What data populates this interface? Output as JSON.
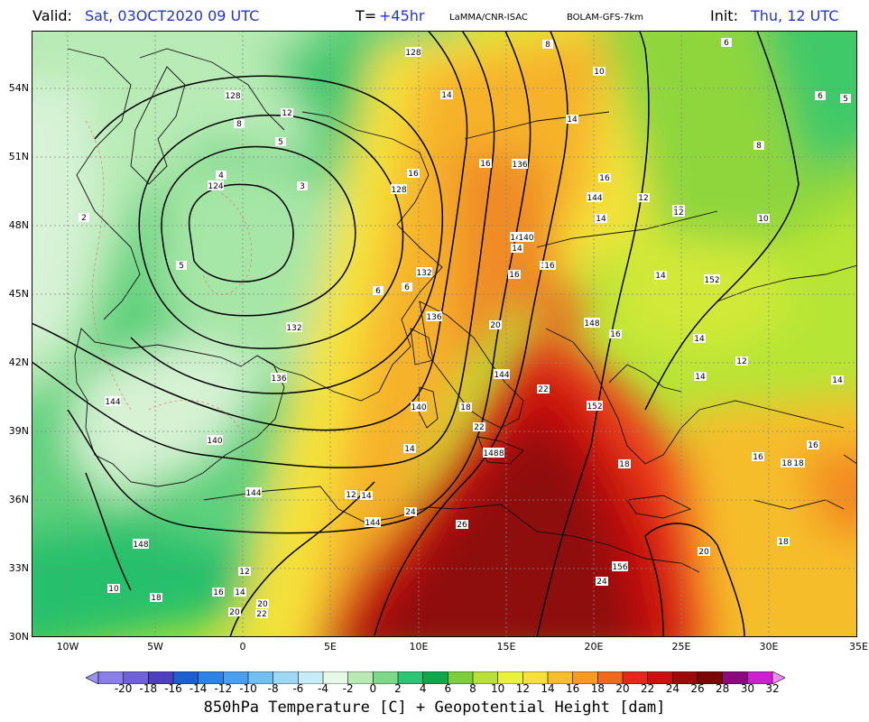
{
  "header": {
    "valid_label": "Valid:",
    "valid_value": "Sat, 03OCT2020  09 UTC",
    "lead_label": "T=",
    "lead_value": "+45hr",
    "source": "LaMMA/CNR-ISAC",
    "model": "BOLAM-GFS-7km",
    "init_label": "Init:",
    "init_value": "Thu, 12 UTC"
  },
  "axes": {
    "lat_labels": [
      "54N",
      "51N",
      "48N",
      "45N",
      "42N",
      "39N",
      "36N",
      "33N",
      "30N"
    ],
    "lon_labels": [
      "10W",
      "5W",
      "0",
      "5E",
      "10E",
      "15E",
      "20E",
      "25E",
      "30E",
      "35E"
    ]
  },
  "colorbar": {
    "title": "850hPa Temperature [C] + Geopotential Height [dam]",
    "labels": [
      "-20",
      "-18",
      "-16",
      "-14",
      "-12",
      "-10",
      "-8",
      "-6",
      "-4",
      "-2",
      "0",
      "2",
      "4",
      "6",
      "8",
      "10",
      "12",
      "14",
      "16",
      "18",
      "20",
      "22",
      "24",
      "26",
      "28",
      "30",
      "32"
    ],
    "colors": [
      "#9b8ff0",
      "#8a7fe6",
      "#6f62d6",
      "#4f3fbf",
      "#1d5fd1",
      "#2d83e6",
      "#4aa0ee",
      "#72bff2",
      "#9ed8f5",
      "#c8ecf7",
      "#e6f8e6",
      "#b9eab6",
      "#7fd88a",
      "#2cc576",
      "#0ea84a",
      "#7ccf3a",
      "#b9e034",
      "#e8f23a",
      "#f7e03a",
      "#f6bf2a",
      "#f69a22",
      "#f16a1c",
      "#e8271c",
      "#cc1010",
      "#9e0a0a",
      "#7a0606",
      "#8b0a7d",
      "#d01fd0",
      "#f08ef0"
    ]
  },
  "contour_labels": [
    {
      "text": "128"
    },
    {
      "text": "124"
    },
    {
      "text": "128"
    },
    {
      "text": "132"
    },
    {
      "text": "136"
    },
    {
      "text": "136"
    },
    {
      "text": "140"
    },
    {
      "text": "140"
    },
    {
      "text": "140"
    },
    {
      "text": "144"
    },
    {
      "text": "144"
    },
    {
      "text": "144"
    },
    {
      "text": "148"
    },
    {
      "text": "148"
    },
    {
      "text": "152"
    },
    {
      "text": "156"
    },
    {
      "text": "128"
    },
    {
      "text": "132"
    },
    {
      "text": "136"
    },
    {
      "text": "144"
    },
    {
      "text": "148"
    },
    {
      "text": "152"
    },
    {
      "text": "140"
    },
    {
      "text": "144"
    },
    {
      "text": "148"
    }
  ],
  "temp_labels": [
    {
      "text": "8"
    },
    {
      "text": "6"
    },
    {
      "text": "10"
    },
    {
      "text": "14"
    },
    {
      "text": "12"
    },
    {
      "text": "12"
    },
    {
      "text": "10"
    },
    {
      "text": "16"
    },
    {
      "text": "16"
    },
    {
      "text": "16"
    },
    {
      "text": "14"
    },
    {
      "text": "12"
    },
    {
      "text": "14"
    },
    {
      "text": "14"
    },
    {
      "text": "16"
    },
    {
      "text": "16"
    },
    {
      "text": "20"
    },
    {
      "text": "22"
    },
    {
      "text": "26"
    },
    {
      "text": "24"
    },
    {
      "text": "22"
    },
    {
      "text": "18"
    },
    {
      "text": "14"
    },
    {
      "text": "20"
    },
    {
      "text": "18"
    },
    {
      "text": "18"
    },
    {
      "text": "20"
    },
    {
      "text": "24"
    },
    {
      "text": "14"
    },
    {
      "text": "12"
    },
    {
      "text": "10"
    },
    {
      "text": "16"
    },
    {
      "text": "18"
    },
    {
      "text": "22"
    },
    {
      "text": "20"
    },
    {
      "text": "12"
    },
    {
      "text": "14"
    },
    {
      "text": "6"
    },
    {
      "text": "5"
    },
    {
      "text": "4"
    },
    {
      "text": "3"
    },
    {
      "text": "2"
    },
    {
      "text": "5"
    },
    {
      "text": "6"
    },
    {
      "text": "8"
    },
    {
      "text": "8"
    },
    {
      "text": "12"
    },
    {
      "text": "14"
    },
    {
      "text": "16"
    },
    {
      "text": "18"
    },
    {
      "text": "18"
    },
    {
      "text": "16"
    },
    {
      "text": "14"
    },
    {
      "text": "14"
    },
    {
      "text": "12"
    },
    {
      "text": "10"
    },
    {
      "text": "8"
    },
    {
      "text": "6"
    },
    {
      "text": "5"
    },
    {
      "text": "14"
    },
    {
      "text": "16"
    },
    {
      "text": "16"
    },
    {
      "text": "18"
    }
  ]
}
